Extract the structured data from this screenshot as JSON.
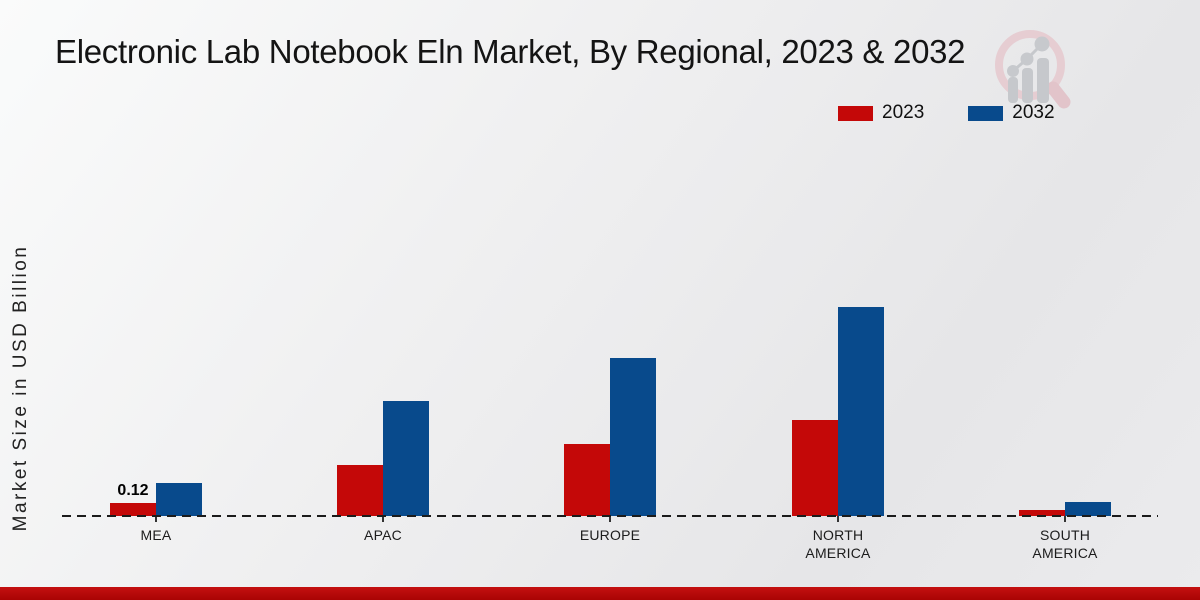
{
  "page": {
    "title": "Electronic Lab Notebook Eln Market, By Regional, 2023 & 2032",
    "ylabel": "Market Size in USD Billion"
  },
  "brand": {
    "logo_icon": "magnifier-bar-chart-logo"
  },
  "colors": {
    "series_2023": "#c40808",
    "series_2032": "#084a8c",
    "footer_bar": "#b30909",
    "baseline": "#1b1b1b"
  },
  "chart_data": {
    "type": "bar",
    "title": "Electronic Lab Notebook Eln Market, By Regional, 2023 & 2032",
    "xlabel": "",
    "ylabel": "Market Size in USD Billion",
    "units": "USD Billion",
    "categories": [
      "MEA",
      "APAC",
      "EUROPE",
      "NORTH AMERICA",
      "SOUTH AMERICA"
    ],
    "series": [
      {
        "name": "2023",
        "color": "#c40808",
        "values": [
          0.12,
          0.47,
          0.67,
          0.89,
          0.06
        ]
      },
      {
        "name": "2032",
        "color": "#084a8c",
        "values": [
          0.31,
          1.07,
          1.47,
          1.94,
          0.13
        ]
      }
    ],
    "data_labels": [
      {
        "series_index": 0,
        "category_index": 0,
        "text": "0.12"
      }
    ],
    "ylim": [
      0,
      2.2
    ],
    "y_axis_ticks_visible": false,
    "gridlines": false,
    "baseline_style": "dashed",
    "legend_position": "top-right"
  }
}
